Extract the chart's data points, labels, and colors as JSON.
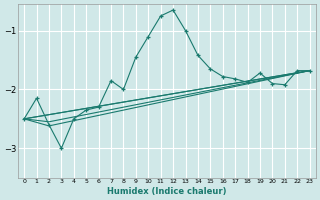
{
  "xlabel": "Humidex (Indice chaleur)",
  "bg_color": "#d0e8e8",
  "grid_color": "#ffffff",
  "grid_minor_color": "#c8e0e0",
  "line_color": "#1a7a6e",
  "xlim": [
    -0.5,
    23.5
  ],
  "ylim": [
    -3.5,
    -0.55
  ],
  "yticks": [
    -3,
    -2,
    -1
  ],
  "xticks": [
    0,
    1,
    2,
    3,
    4,
    5,
    6,
    7,
    8,
    9,
    10,
    11,
    12,
    13,
    14,
    15,
    16,
    17,
    18,
    19,
    20,
    21,
    22,
    23
  ],
  "series_main": [
    [
      0,
      -2.5
    ],
    [
      1,
      -2.15
    ],
    [
      2,
      -2.6
    ],
    [
      3,
      -3.0
    ],
    [
      4,
      -2.5
    ],
    [
      5,
      -2.35
    ],
    [
      6,
      -2.3
    ],
    [
      7,
      -1.85
    ],
    [
      8,
      -2.0
    ],
    [
      9,
      -1.45
    ],
    [
      10,
      -1.1
    ],
    [
      11,
      -0.75
    ],
    [
      12,
      -0.65
    ],
    [
      13,
      -1.0
    ],
    [
      14,
      -1.42
    ],
    [
      15,
      -1.65
    ],
    [
      16,
      -1.78
    ],
    [
      17,
      -1.82
    ],
    [
      18,
      -1.88
    ],
    [
      19,
      -1.72
    ],
    [
      20,
      -1.9
    ],
    [
      21,
      -1.92
    ],
    [
      22,
      -1.68
    ],
    [
      23,
      -1.68
    ]
  ],
  "series_lower": [
    [
      0,
      -2.5
    ],
    [
      23,
      -1.68
    ]
  ],
  "series_mid1": [
    [
      0,
      -2.5
    ],
    [
      2,
      -2.62
    ],
    [
      23,
      -1.68
    ]
  ],
  "series_mid2": [
    [
      0,
      -2.5
    ],
    [
      2,
      -2.55
    ],
    [
      23,
      -1.68
    ]
  ],
  "series_upper": [
    [
      0,
      -2.5
    ],
    [
      23,
      -1.68
    ]
  ]
}
